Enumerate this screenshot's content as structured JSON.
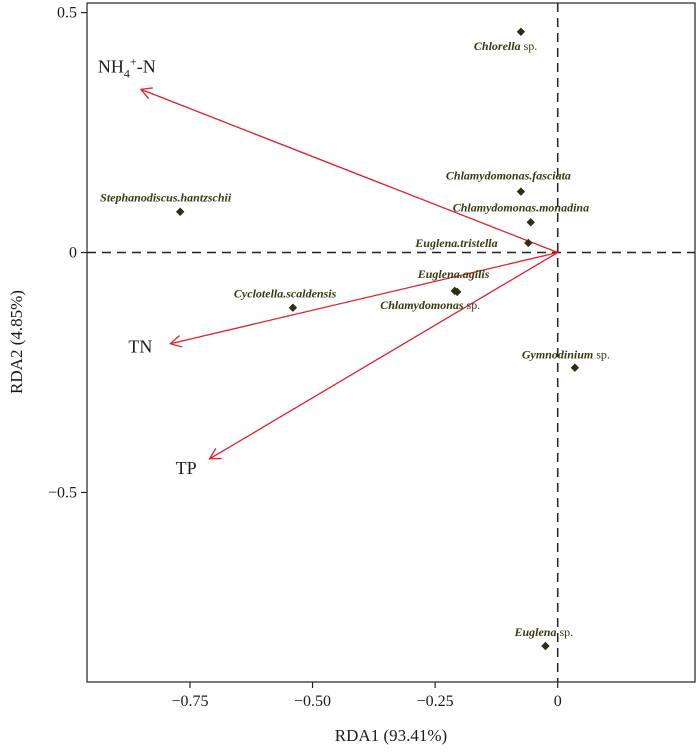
{
  "chart_data": {
    "type": "scatter",
    "xlabel": "RDA1 (93.41%)",
    "ylabel": "RDA2 (4.85%)",
    "xlim": [
      -0.96,
      0.28
    ],
    "ylim": [
      -0.895,
      0.52
    ],
    "x_ticks": [
      {
        "value": -0.75,
        "label": "−0.75"
      },
      {
        "value": -0.5,
        "label": "−0.50"
      },
      {
        "value": -0.25,
        "label": "−0.25"
      },
      {
        "value": 0,
        "label": "0"
      }
    ],
    "y_ticks": [
      {
        "value": 0.5,
        "label": "0.5"
      },
      {
        "value": 0,
        "label": "0"
      },
      {
        "value": -0.5,
        "label": "−0.5"
      }
    ],
    "reference_lines": {
      "x": 0,
      "y": 0,
      "style": "dashed"
    },
    "colors": {
      "arrows": "#e0202a",
      "points": "#2e2e12",
      "species_text": "#3a3a10",
      "axes": "#222222"
    },
    "environment_vectors": [
      {
        "id": "nh4",
        "label": "NH4+-N",
        "label_main": "NH",
        "label_sub": "4",
        "label_sup": "+",
        "label_tail": "-N",
        "x": -0.85,
        "y": 0.34
      },
      {
        "id": "tn",
        "label": "TN",
        "x": -0.79,
        "y": -0.19
      },
      {
        "id": "tp",
        "label": "TP",
        "x": -0.71,
        "y": -0.43
      }
    ],
    "species": [
      {
        "name": "Chlorella",
        "suffix": " sp.",
        "x": -0.075,
        "y": 0.46
      },
      {
        "name": "Chlamydomonas.fasciata",
        "suffix": "",
        "x": -0.075,
        "y": 0.127
      },
      {
        "name": "Chlamydomonas.monadina",
        "suffix": "",
        "x": -0.055,
        "y": 0.063
      },
      {
        "name": "Euglena.tristella",
        "suffix": "",
        "x": -0.06,
        "y": 0.02
      },
      {
        "name": "Stephanodiscus.hantzschii",
        "suffix": "",
        "x": -0.77,
        "y": 0.085
      },
      {
        "name": "Euglena.agilis",
        "suffix": "",
        "x": -0.21,
        "y": -0.08
      },
      {
        "name": "Chlamydomonas",
        "suffix": " sp.",
        "x": -0.205,
        "y": -0.082
      },
      {
        "name": "Cyclotella.scaldensis",
        "suffix": "",
        "x": -0.54,
        "y": -0.115
      },
      {
        "name": "Gymnodinium",
        "suffix": " sp.",
        "x": 0.035,
        "y": -0.24
      },
      {
        "name": "Euglena",
        "suffix": " sp.",
        "x": -0.025,
        "y": -0.82
      }
    ]
  }
}
